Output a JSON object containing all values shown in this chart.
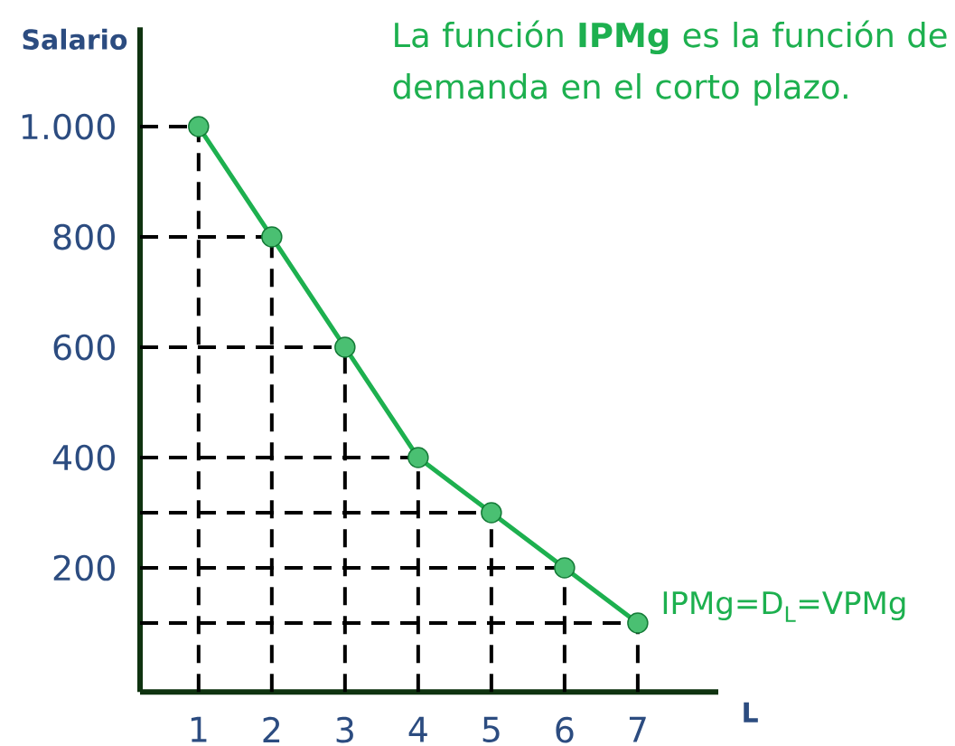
{
  "chart_data": {
    "type": "line",
    "ylabel": "Salario",
    "xlabel": "L",
    "x": [
      1,
      2,
      3,
      4,
      5,
      6,
      7
    ],
    "series": [
      {
        "color": "#1db04f",
        "values": [
          1000,
          800,
          600,
          400,
          300,
          200,
          100
        ]
      }
    ],
    "xlim": [
      0.2,
      8.1
    ],
    "ylim": [
      -25,
      1180
    ],
    "xticks": [
      1,
      2,
      3,
      4,
      5,
      6,
      7
    ],
    "yticks": [
      200,
      400,
      600,
      800,
      {
        "value": 1000,
        "label": "1.000"
      }
    ],
    "marker": "circle",
    "line_style": "solid",
    "grid": false,
    "legend": false,
    "ref_lines": [
      {
        "axis": "x",
        "value": 1
      },
      {
        "axis": "x",
        "value": 2
      },
      {
        "axis": "x",
        "value": 3
      },
      {
        "axis": "x",
        "value": 4
      },
      {
        "axis": "x",
        "value": 5
      },
      {
        "axis": "x",
        "value": 6
      },
      {
        "axis": "x",
        "value": 7
      },
      {
        "axis": "y",
        "value": 1000
      },
      {
        "axis": "y",
        "value": 800
      },
      {
        "axis": "y",
        "value": 600
      },
      {
        "axis": "y",
        "value": 400
      },
      {
        "axis": "y",
        "value": 300
      },
      {
        "axis": "y",
        "value": 200
      },
      {
        "axis": "y",
        "value": 100
      }
    ],
    "annotations": [
      "La función **IPMg** es la función de demanda en el corto plazo.",
      {
        "text": "IPMg=D$_{L}$=VPMg",
        "x": 7,
        "y": 100
      }
    ]
  }
}
